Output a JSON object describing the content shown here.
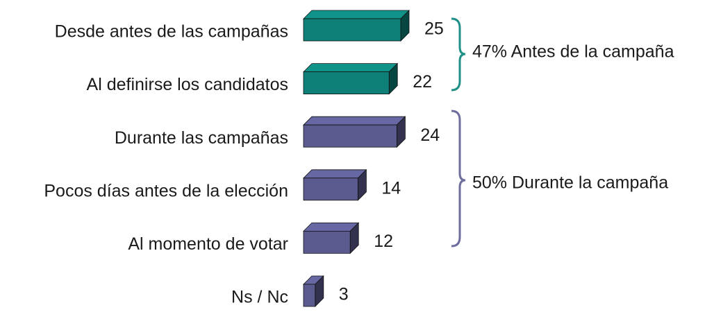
{
  "chart_data": {
    "type": "bar3d-horizontal",
    "categories": [
      "Desde antes de las campañas",
      "Al definirse los candidatos",
      "Durante las campañas",
      "Pocos días antes de la elección",
      "Al momento de votar",
      "Ns / Nc"
    ],
    "values": [
      25,
      22,
      24,
      14,
      12,
      3
    ],
    "colors": [
      "#0e8077",
      "#0e8077",
      "#5a5a8e",
      "#5a5a8e",
      "#5a5a8e",
      "#5a5a8e"
    ],
    "annotations": [
      "47% Antes de la campaña",
      "50% Durante la campaña"
    ]
  }
}
